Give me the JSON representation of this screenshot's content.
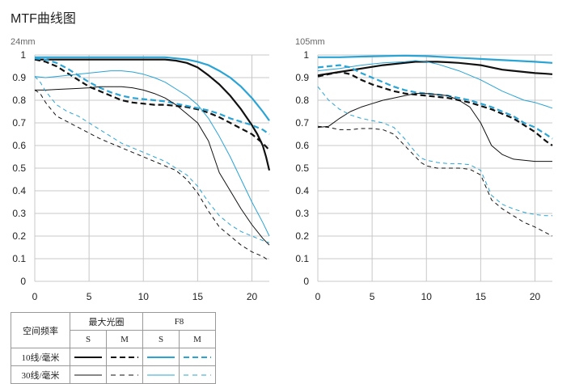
{
  "title": "MTF曲线图",
  "colors": {
    "max_aperture": "#111111",
    "f8": "#29a4d5",
    "grid": "#c8c8c8"
  },
  "legend": {
    "header_rowlabel": "空间频率",
    "header_max_aperture": "最大光圈",
    "header_f8": "F8",
    "s_label": "S",
    "m_label": "M",
    "row_10": "10线/毫米",
    "row_30": "30线/毫米"
  },
  "chart_data": [
    {
      "type": "line",
      "title": "24mm",
      "xlabel": "",
      "ylabel": "",
      "xlim": [
        0,
        21.6
      ],
      "ylim": [
        0,
        1
      ],
      "xticks": [
        0,
        5,
        10,
        15,
        20
      ],
      "yticks": [
        0,
        0.1,
        0.2,
        0.3,
        0.4,
        0.5,
        0.6,
        0.7,
        0.8,
        0.9,
        1
      ],
      "grid": true,
      "series": [
        {
          "aperture": "max",
          "freq": "10",
          "dir": "S",
          "x": [
            0,
            2,
            4,
            6,
            8,
            10,
            12,
            13,
            14,
            15,
            16,
            17,
            18,
            19,
            20,
            20.5,
            21,
            21.3,
            21.6
          ],
          "y": [
            0.98,
            0.98,
            0.98,
            0.98,
            0.98,
            0.98,
            0.98,
            0.975,
            0.965,
            0.945,
            0.91,
            0.87,
            0.82,
            0.76,
            0.69,
            0.65,
            0.6,
            0.55,
            0.49
          ]
        },
        {
          "aperture": "max",
          "freq": "10",
          "dir": "M",
          "x": [
            0,
            1,
            2,
            3,
            4,
            5,
            6,
            7,
            8,
            9,
            10,
            11,
            12,
            13,
            14,
            15,
            16,
            17,
            18,
            19,
            20,
            20.5,
            21,
            21.3,
            21.6
          ],
          "y": [
            0.98,
            0.97,
            0.95,
            0.92,
            0.89,
            0.86,
            0.84,
            0.82,
            0.8,
            0.79,
            0.785,
            0.78,
            0.78,
            0.775,
            0.77,
            0.76,
            0.745,
            0.725,
            0.7,
            0.675,
            0.65,
            0.63,
            0.61,
            0.595,
            0.58
          ]
        },
        {
          "aperture": "F8",
          "freq": "10",
          "dir": "S",
          "x": [
            0,
            2,
            4,
            6,
            8,
            10,
            12,
            13,
            14,
            15,
            16,
            17,
            18,
            19,
            20,
            20.5,
            21,
            21.3,
            21.6
          ],
          "y": [
            0.99,
            0.99,
            0.99,
            0.99,
            0.99,
            0.99,
            0.99,
            0.985,
            0.98,
            0.97,
            0.955,
            0.93,
            0.9,
            0.86,
            0.81,
            0.78,
            0.75,
            0.73,
            0.71
          ]
        },
        {
          "aperture": "F8",
          "freq": "10",
          "dir": "M",
          "x": [
            0,
            1,
            2,
            3,
            4,
            5,
            6,
            7,
            8,
            9,
            10,
            11,
            12,
            13,
            14,
            15,
            16,
            17,
            18,
            19,
            20,
            21,
            21.6
          ],
          "y": [
            0.985,
            0.98,
            0.965,
            0.94,
            0.91,
            0.88,
            0.855,
            0.835,
            0.82,
            0.81,
            0.805,
            0.8,
            0.795,
            0.785,
            0.775,
            0.765,
            0.755,
            0.74,
            0.72,
            0.705,
            0.69,
            0.67,
            0.65
          ]
        },
        {
          "aperture": "max",
          "freq": "30",
          "dir": "S",
          "x": [
            0,
            1,
            2,
            3,
            4,
            5,
            6,
            7,
            8,
            9,
            10,
            11,
            12,
            13,
            14,
            15,
            16,
            16.5,
            17,
            18,
            19,
            20,
            21,
            21.6
          ],
          "y": [
            0.845,
            0.845,
            0.848,
            0.85,
            0.852,
            0.855,
            0.86,
            0.86,
            0.86,
            0.855,
            0.845,
            0.83,
            0.81,
            0.78,
            0.74,
            0.7,
            0.62,
            0.55,
            0.48,
            0.4,
            0.32,
            0.25,
            0.19,
            0.16
          ]
        },
        {
          "aperture": "max",
          "freq": "30",
          "dir": "M",
          "x": [
            0,
            0.5,
            1,
            2,
            3,
            4,
            5,
            6,
            7,
            8,
            9,
            10,
            11,
            12,
            13,
            14,
            15,
            16,
            17,
            18,
            19,
            20,
            21,
            21.6
          ],
          "y": [
            0.845,
            0.83,
            0.79,
            0.73,
            0.705,
            0.68,
            0.655,
            0.63,
            0.61,
            0.59,
            0.57,
            0.55,
            0.53,
            0.51,
            0.49,
            0.45,
            0.39,
            0.31,
            0.24,
            0.2,
            0.16,
            0.13,
            0.11,
            0.09
          ]
        },
        {
          "aperture": "F8",
          "freq": "30",
          "dir": "S",
          "x": [
            0,
            1,
            2,
            3,
            4,
            5,
            6,
            7,
            8,
            9,
            10,
            11,
            12,
            13,
            14,
            15,
            16,
            17,
            18,
            19,
            20,
            21,
            21.6
          ],
          "y": [
            0.905,
            0.9,
            0.905,
            0.91,
            0.915,
            0.92,
            0.925,
            0.93,
            0.93,
            0.925,
            0.915,
            0.9,
            0.88,
            0.85,
            0.82,
            0.78,
            0.72,
            0.64,
            0.55,
            0.45,
            0.35,
            0.26,
            0.2
          ]
        },
        {
          "aperture": "F8",
          "freq": "30",
          "dir": "M",
          "x": [
            0,
            0.5,
            1,
            2,
            3,
            4,
            5,
            6,
            7,
            8,
            9,
            10,
            11,
            12,
            13,
            14,
            15,
            16,
            17,
            18,
            19,
            20,
            21,
            21.6
          ],
          "y": [
            0.905,
            0.88,
            0.84,
            0.78,
            0.75,
            0.73,
            0.7,
            0.67,
            0.64,
            0.61,
            0.59,
            0.57,
            0.55,
            0.53,
            0.5,
            0.47,
            0.42,
            0.35,
            0.29,
            0.25,
            0.22,
            0.2,
            0.18,
            0.17
          ]
        }
      ]
    },
    {
      "type": "line",
      "title": "105mm",
      "xlabel": "",
      "ylabel": "",
      "xlim": [
        0,
        21.6
      ],
      "ylim": [
        0,
        1
      ],
      "xticks": [
        0,
        5,
        10,
        15,
        20
      ],
      "yticks": [
        0,
        0.1,
        0.2,
        0.3,
        0.4,
        0.5,
        0.6,
        0.7,
        0.8,
        0.9,
        1
      ],
      "grid": true,
      "series": [
        {
          "aperture": "max",
          "freq": "10",
          "dir": "S",
          "x": [
            0,
            2,
            4,
            6,
            8,
            9,
            10,
            11,
            12,
            13,
            14,
            15,
            16,
            17,
            18,
            19,
            20,
            21,
            21.6
          ],
          "y": [
            0.91,
            0.925,
            0.94,
            0.955,
            0.965,
            0.97,
            0.97,
            0.97,
            0.968,
            0.965,
            0.96,
            0.955,
            0.945,
            0.935,
            0.93,
            0.925,
            0.92,
            0.917,
            0.915
          ]
        },
        {
          "aperture": "max",
          "freq": "10",
          "dir": "M",
          "x": [
            0,
            1,
            2,
            3,
            4,
            5,
            6,
            7,
            8,
            9,
            10,
            11,
            12,
            13,
            14,
            15,
            16,
            17,
            18,
            19,
            20,
            21,
            21.6
          ],
          "y": [
            0.905,
            0.915,
            0.925,
            0.915,
            0.89,
            0.87,
            0.855,
            0.84,
            0.83,
            0.825,
            0.82,
            0.815,
            0.81,
            0.8,
            0.79,
            0.775,
            0.76,
            0.74,
            0.72,
            0.69,
            0.66,
            0.62,
            0.6
          ]
        },
        {
          "aperture": "F8",
          "freq": "10",
          "dir": "S",
          "x": [
            0,
            2,
            4,
            6,
            8,
            10,
            12,
            14,
            16,
            18,
            20,
            21.6
          ],
          "y": [
            0.99,
            0.99,
            0.993,
            0.995,
            0.997,
            0.995,
            0.99,
            0.985,
            0.98,
            0.975,
            0.97,
            0.965
          ]
        },
        {
          "aperture": "F8",
          "freq": "10",
          "dir": "M",
          "x": [
            0,
            1,
            2,
            3,
            4,
            5,
            6,
            7,
            8,
            9,
            10,
            11,
            12,
            13,
            14,
            15,
            16,
            17,
            18,
            19,
            20,
            21,
            21.6
          ],
          "y": [
            0.945,
            0.95,
            0.955,
            0.945,
            0.92,
            0.9,
            0.88,
            0.86,
            0.845,
            0.835,
            0.83,
            0.825,
            0.82,
            0.81,
            0.8,
            0.785,
            0.77,
            0.75,
            0.73,
            0.7,
            0.68,
            0.65,
            0.63
          ]
        },
        {
          "aperture": "max",
          "freq": "30",
          "dir": "S",
          "x": [
            0,
            1,
            2,
            3,
            4,
            5,
            6,
            7,
            8,
            8.5,
            9,
            10,
            11,
            12,
            13,
            14,
            15,
            16,
            17,
            18,
            19,
            20,
            21,
            21.6
          ],
          "y": [
            0.68,
            0.685,
            0.72,
            0.75,
            0.77,
            0.785,
            0.8,
            0.81,
            0.82,
            0.825,
            0.83,
            0.83,
            0.825,
            0.82,
            0.8,
            0.77,
            0.7,
            0.6,
            0.56,
            0.54,
            0.535,
            0.53,
            0.53,
            0.53
          ]
        },
        {
          "aperture": "max",
          "freq": "30",
          "dir": "M",
          "x": [
            0,
            1,
            2,
            3,
            4,
            5,
            6,
            7,
            8,
            9,
            9.5,
            10,
            11,
            12,
            13,
            14,
            15,
            16,
            17,
            18,
            19,
            20,
            21,
            21.6
          ],
          "y": [
            0.685,
            0.68,
            0.67,
            0.67,
            0.675,
            0.675,
            0.67,
            0.65,
            0.6,
            0.55,
            0.525,
            0.51,
            0.5,
            0.5,
            0.5,
            0.495,
            0.47,
            0.36,
            0.32,
            0.29,
            0.26,
            0.24,
            0.215,
            0.2
          ]
        },
        {
          "aperture": "F8",
          "freq": "30",
          "dir": "S",
          "x": [
            0,
            2,
            4,
            6,
            8,
            9,
            10,
            11,
            12,
            13,
            14,
            15,
            16,
            17,
            18,
            19,
            20,
            21,
            21.6
          ],
          "y": [
            0.93,
            0.94,
            0.955,
            0.965,
            0.97,
            0.975,
            0.97,
            0.96,
            0.945,
            0.93,
            0.91,
            0.89,
            0.865,
            0.84,
            0.82,
            0.8,
            0.79,
            0.775,
            0.765
          ]
        },
        {
          "aperture": "F8",
          "freq": "30",
          "dir": "M",
          "x": [
            0,
            0.5,
            1,
            2,
            3,
            4,
            5,
            6,
            7,
            8,
            9,
            9.5,
            10,
            11,
            12,
            13,
            14,
            15,
            16,
            17,
            18,
            19,
            20,
            21,
            21.6
          ],
          "y": [
            0.86,
            0.83,
            0.8,
            0.76,
            0.735,
            0.72,
            0.71,
            0.7,
            0.68,
            0.63,
            0.57,
            0.545,
            0.535,
            0.525,
            0.52,
            0.52,
            0.515,
            0.49,
            0.38,
            0.34,
            0.32,
            0.305,
            0.295,
            0.29,
            0.29
          ]
        }
      ]
    }
  ]
}
